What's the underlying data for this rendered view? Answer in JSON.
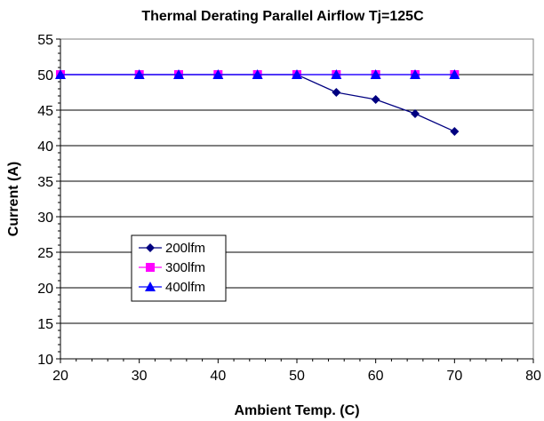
{
  "chart_data": {
    "type": "line",
    "title": "Thermal Derating Parallel Airflow Tj=125C",
    "xlabel": "Ambient Temp. (C)",
    "ylabel": "Current (A)",
    "xlim": [
      20,
      80
    ],
    "ylim": [
      10,
      55
    ],
    "xticks": [
      20,
      30,
      40,
      50,
      60,
      70,
      80
    ],
    "yticks": [
      10,
      15,
      20,
      25,
      30,
      35,
      40,
      45,
      50,
      55
    ],
    "grid": "horizontal",
    "legend_position": "lower-left",
    "series": [
      {
        "name": "200lfm",
        "color": "#000080",
        "marker": "diamond",
        "x": [
          20,
          30,
          35,
          40,
          45,
          50,
          55,
          60,
          65,
          70
        ],
        "y": [
          50,
          50,
          50,
          50,
          50,
          50,
          47.5,
          46.5,
          44.5,
          42
        ]
      },
      {
        "name": "300lfm",
        "color": "#FF00FF",
        "marker": "square",
        "x": [
          20,
          30,
          35,
          40,
          45,
          50,
          55,
          60,
          65,
          70
        ],
        "y": [
          50,
          50,
          50,
          50,
          50,
          50,
          50,
          50,
          50,
          50
        ]
      },
      {
        "name": "400lfm",
        "color": "#0000FF",
        "marker": "triangle",
        "x": [
          20,
          30,
          35,
          40,
          45,
          50,
          55,
          60,
          65,
          70
        ],
        "y": [
          50,
          50,
          50,
          50,
          50,
          50,
          50,
          50,
          50,
          50
        ]
      }
    ]
  }
}
